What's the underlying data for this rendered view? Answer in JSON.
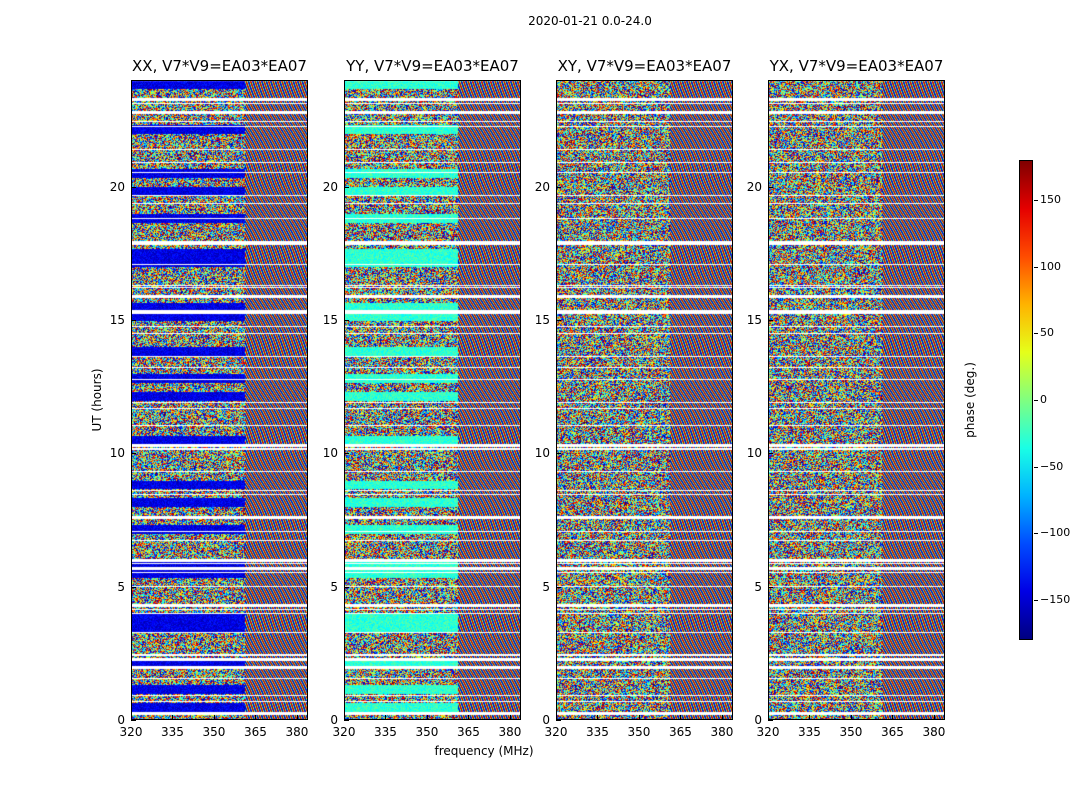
{
  "chart_data": {
    "type": "heatmap",
    "suptitle": "2020-01-21 0.0-24.0",
    "xlabel": "frequency (MHz)",
    "ylabel": "UT (hours)",
    "xlim": [
      320,
      384
    ],
    "ylim": [
      0,
      24
    ],
    "xticks": [
      "320",
      "335",
      "350",
      "365",
      "380"
    ],
    "yticks": [
      "0",
      "5",
      "10",
      "15",
      "20"
    ],
    "colormap": "jet",
    "colorbar": {
      "label": "phase (deg.)",
      "range": [
        -180,
        180
      ],
      "ticks": [
        "150",
        "100",
        "50",
        "0",
        "−50",
        "−100",
        "−150"
      ],
      "tick_values": [
        150,
        100,
        50,
        0,
        -50,
        -100,
        -150
      ]
    },
    "panels": [
      {
        "title": "XX, V7*V9=EA03*EA07",
        "polarization": "XX",
        "baseline": "V7*V9=EA03*EA07"
      },
      {
        "title": "YY, V7*V9=EA03*EA07",
        "polarization": "YY",
        "baseline": "V7*V9=EA03*EA07"
      },
      {
        "title": "XY, V7*V9=EA03*EA07",
        "polarization": "XY",
        "baseline": "V7*V9=EA03*EA07"
      },
      {
        "title": "YX, V7*V9=EA03*EA07",
        "polarization": "YX",
        "baseline": "V7*V9=EA03*EA07"
      }
    ],
    "flagged_ut_hours": [
      0.25,
      2.0,
      2.3,
      4.3,
      5.7,
      6.0,
      7.6,
      10.3,
      15.3,
      15.9,
      17.9,
      22.8,
      23.3
    ]
  }
}
